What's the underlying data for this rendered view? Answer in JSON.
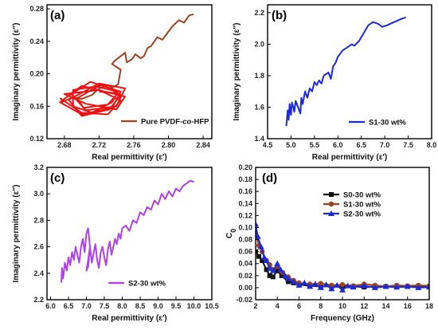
{
  "chart_data": [
    {
      "type": "line",
      "panel_label": "(a)",
      "xlabel": "Real permittivity (ε′)",
      "ylabel": "Imaginary permittivity (ε″)",
      "xlim": [
        2.66,
        2.85
      ],
      "ylim": [
        0.12,
        0.285
      ],
      "xticks": [
        2.68,
        2.72,
        2.76,
        2.8,
        2.84
      ],
      "yticks": [
        0.12,
        0.16,
        0.2,
        0.24,
        0.28
      ],
      "xtick_labels": [
        "2.68",
        "2.72",
        "2.76",
        "2.80",
        "2.84"
      ],
      "ytick_labels": [
        "0.12",
        "0.16",
        "0.20",
        "0.24",
        "0.28"
      ],
      "legend_position": "bottom-right",
      "series": [
        {
          "name": "Pure PVDF-co-HFP",
          "name_parts": [
            "Pure PVDF-",
            "co",
            "-HFP"
          ],
          "color": "#a0421e",
          "x": [
            2.677,
            2.69,
            2.7,
            2.712,
            2.72,
            2.73,
            2.735,
            2.742,
            2.745,
            2.735,
            2.738,
            2.75,
            2.752,
            2.758,
            2.762,
            2.768,
            2.772,
            2.776,
            2.78,
            2.787,
            2.793,
            2.8,
            2.805,
            2.812,
            2.818,
            2.824,
            2.828,
            2.829
          ],
          "y": [
            0.165,
            0.171,
            0.169,
            0.174,
            0.182,
            0.186,
            0.183,
            0.187,
            0.205,
            0.212,
            0.216,
            0.226,
            0.214,
            0.218,
            0.224,
            0.219,
            0.222,
            0.232,
            0.234,
            0.245,
            0.242,
            0.252,
            0.259,
            0.266,
            0.263,
            0.272,
            0.273,
            0.273
          ]
        },
        {
          "name": "",
          "color": "#ee1111",
          "x": [
            2.675,
            2.7,
            2.73,
            2.745,
            2.72,
            2.68,
            2.705,
            2.74,
            2.75,
            2.7,
            2.675,
            2.7,
            2.735,
            2.745,
            2.71,
            2.688,
            2.705,
            2.74,
            2.75,
            2.72,
            2.685,
            2.7,
            2.732,
            2.745,
            2.725,
            2.69,
            2.69,
            2.712,
            2.735,
            2.742,
            2.718,
            2.695,
            2.702,
            2.73,
            2.742,
            2.72
          ],
          "y": [
            0.17,
            0.152,
            0.15,
            0.167,
            0.18,
            0.175,
            0.163,
            0.156,
            0.172,
            0.185,
            0.165,
            0.15,
            0.158,
            0.178,
            0.19,
            0.175,
            0.155,
            0.16,
            0.182,
            0.188,
            0.168,
            0.148,
            0.156,
            0.174,
            0.186,
            0.18,
            0.16,
            0.152,
            0.165,
            0.178,
            0.184,
            0.17,
            0.158,
            0.162,
            0.176,
            0.178
          ]
        }
      ]
    },
    {
      "type": "line",
      "panel_label": "(b)",
      "xlabel": "Real permittivity (ε′)",
      "ylabel": "Imaginary permittivity (ε″)",
      "xlim": [
        4.5,
        8.0
      ],
      "ylim": [
        1.4,
        2.25
      ],
      "xticks": [
        4.5,
        5.0,
        5.5,
        6.0,
        6.5,
        7.0,
        7.5,
        8.0
      ],
      "yticks": [
        1.4,
        1.6,
        1.8,
        2.0,
        2.2
      ],
      "xtick_labels": [
        "4.5",
        "5.0",
        "5.5",
        "6.0",
        "6.5",
        "7.0",
        "7.5",
        "8.0"
      ],
      "ytick_labels": [
        "1.4",
        "1.6",
        "1.8",
        "2.0",
        "2.2"
      ],
      "legend_position": "bottom-right",
      "series": [
        {
          "name": "S1-30 wt%",
          "color": "#1a2ad6",
          "x": [
            4.9,
            4.93,
            4.95,
            4.97,
            5.0,
            5.02,
            5.05,
            5.07,
            5.1,
            5.15,
            5.2,
            5.22,
            5.25,
            5.3,
            5.35,
            5.4,
            5.45,
            5.5,
            5.55,
            5.6,
            5.65,
            5.7,
            5.8,
            5.85,
            5.9,
            5.95,
            6.0,
            6.1,
            6.2,
            6.3,
            6.35,
            6.45,
            6.55,
            6.65,
            6.75,
            6.85,
            6.95,
            7.05,
            7.2,
            7.35,
            7.45
          ],
          "y": [
            1.48,
            1.58,
            1.52,
            1.62,
            1.55,
            1.63,
            1.6,
            1.57,
            1.64,
            1.6,
            1.56,
            1.66,
            1.62,
            1.7,
            1.66,
            1.72,
            1.7,
            1.76,
            1.74,
            1.77,
            1.75,
            1.8,
            1.82,
            1.78,
            1.86,
            1.88,
            1.92,
            1.96,
            1.98,
            2.0,
            1.99,
            2.02,
            2.07,
            2.12,
            2.14,
            2.13,
            2.11,
            2.12,
            2.14,
            2.16,
            2.17
          ]
        }
      ]
    },
    {
      "type": "line",
      "panel_label": "(c)",
      "xlabel": "Real permittivity (ε′)",
      "ylabel": "Imaginary permittivity (ε″)",
      "xlim": [
        5.9,
        10.5
      ],
      "ylim": [
        2.2,
        3.2
      ],
      "xticks": [
        6.0,
        6.5,
        7.0,
        7.5,
        8.0,
        8.5,
        9.0,
        9.5,
        10.0,
        10.5
      ],
      "yticks": [
        2.2,
        2.4,
        2.6,
        2.8,
        3.0,
        3.2
      ],
      "xtick_labels": [
        "6.0",
        "6.5",
        "7.0",
        "7.5",
        "8.0",
        "8.5",
        "9.0",
        "9.5",
        "10.0",
        "10.5"
      ],
      "ytick_labels": [
        "2.2",
        "2.4",
        "2.6",
        "2.8",
        "3.0",
        "3.2"
      ],
      "legend_position": "bottom-right",
      "series": [
        {
          "name": "S2-30 wt%",
          "color": "#b040e8",
          "x": [
            6.3,
            6.32,
            6.35,
            6.4,
            6.45,
            6.5,
            6.55,
            6.6,
            6.65,
            6.7,
            6.75,
            6.8,
            6.85,
            6.9,
            6.95,
            7.0,
            7.05,
            7.1,
            7.05,
            7.0,
            7.05,
            7.1,
            7.15,
            7.2,
            7.25,
            7.3,
            7.35,
            7.4,
            7.45,
            7.5,
            7.55,
            7.6,
            7.65,
            7.7,
            7.75,
            7.8,
            7.85,
            7.9,
            7.95,
            8.0,
            8.1,
            8.2,
            8.3,
            8.4,
            8.5,
            8.6,
            8.7,
            8.8,
            8.9,
            9.0,
            9.1,
            9.2,
            9.3,
            9.4,
            9.5,
            9.6,
            9.7,
            9.8,
            9.9,
            10.0
          ],
          "y": [
            2.33,
            2.44,
            2.36,
            2.48,
            2.42,
            2.52,
            2.46,
            2.56,
            2.5,
            2.6,
            2.54,
            2.48,
            2.6,
            2.66,
            2.56,
            2.7,
            2.74,
            2.6,
            2.45,
            2.42,
            2.5,
            2.6,
            2.48,
            2.55,
            2.62,
            2.5,
            2.44,
            2.56,
            2.6,
            2.52,
            2.46,
            2.58,
            2.64,
            2.54,
            2.6,
            2.66,
            2.62,
            2.7,
            2.66,
            2.74,
            2.76,
            2.72,
            2.8,
            2.78,
            2.86,
            2.84,
            2.9,
            2.88,
            2.95,
            2.92,
            3.0,
            2.96,
            3.02,
            2.98,
            3.04,
            3.02,
            3.06,
            3.08,
            3.1,
            3.09
          ]
        }
      ]
    },
    {
      "type": "line",
      "panel_label": "(d)",
      "xlabel": "Frequency (GHz)",
      "ylabel": "C0",
      "ylabel_parts": [
        "C",
        "0"
      ],
      "xlim": [
        2,
        18
      ],
      "ylim": [
        -0.02,
        0.2
      ],
      "xticks": [
        2,
        4,
        6,
        8,
        10,
        12,
        14,
        16,
        18
      ],
      "yticks": [
        -0.02,
        0.0,
        0.02,
        0.04,
        0.06,
        0.08,
        0.1,
        0.12,
        0.14,
        0.16,
        0.18,
        0.2
      ],
      "xtick_labels": [
        "2",
        "4",
        "6",
        "8",
        "10",
        "12",
        "14",
        "16",
        "18"
      ],
      "ytick_labels": [
        "-0.02",
        "0.00",
        "0.02",
        "0.04",
        "0.06",
        "0.08",
        "0.10",
        "0.12",
        "0.14",
        "0.16",
        "0.18",
        "0.20"
      ],
      "legend_position": "top-center",
      "series": [
        {
          "name": "S0-30 wt%",
          "color": "#111111",
          "marker": "square",
          "x": [
            2.0,
            2.3,
            2.6,
            3.0,
            3.3,
            3.6,
            4.0,
            4.4,
            5.0,
            5.5,
            6.0,
            7.0,
            8.0,
            9.0,
            10.0,
            11.0,
            12.0,
            13.0,
            14.0,
            15.0,
            16.0,
            17.0,
            18.0
          ],
          "y": [
            0.06,
            0.052,
            0.045,
            0.03,
            0.02,
            0.018,
            0.028,
            0.02,
            0.01,
            0.008,
            0.005,
            0.003,
            0.002,
            0.002,
            0.002,
            0.002,
            0.001,
            0.002,
            0.002,
            0.001,
            0.002,
            0.001,
            0.002
          ]
        },
        {
          "name": "S1-30 wt%",
          "color": "#a0421e",
          "marker": "circle",
          "x": [
            2.0,
            2.3,
            2.6,
            3.0,
            3.3,
            3.6,
            4.0,
            4.5,
            5.0,
            5.5,
            6.0,
            7.0,
            8.0,
            9.0,
            10.0,
            11.0,
            12.0,
            13.0,
            14.0,
            15.0,
            16.0,
            17.0,
            18.0
          ],
          "y": [
            0.09,
            0.07,
            0.06,
            0.045,
            0.038,
            0.03,
            0.035,
            0.025,
            0.018,
            0.012,
            0.008,
            0.006,
            0.007,
            0.004,
            0.005,
            0.003,
            0.006,
            0.004,
            0.002,
            0.004,
            0.003,
            0.004,
            0.003
          ]
        },
        {
          "name": "S2-30 wt%",
          "color": "#1a2ad6",
          "marker": "triangle",
          "x": [
            2.0,
            2.2,
            2.5,
            2.8,
            3.0,
            3.3,
            3.6,
            4.0,
            4.3,
            4.7,
            5.0,
            5.5,
            6.0,
            6.5,
            7.0,
            7.5,
            8.0,
            8.5,
            9.0,
            9.5,
            10.0,
            10.5,
            11.0,
            12.0,
            13.0,
            14.0,
            15.0,
            16.0,
            17.0,
            18.0
          ],
          "y": [
            0.105,
            0.085,
            0.068,
            0.05,
            0.045,
            0.032,
            0.028,
            0.04,
            0.03,
            0.02,
            0.015,
            0.01,
            0.004,
            0.008,
            0.002,
            0.006,
            0.0,
            0.005,
            -0.002,
            0.004,
            -0.004,
            0.003,
            0.001,
            0.003,
            0.0,
            0.002,
            0.001,
            0.002,
            0.0,
            0.001
          ]
        }
      ]
    }
  ]
}
